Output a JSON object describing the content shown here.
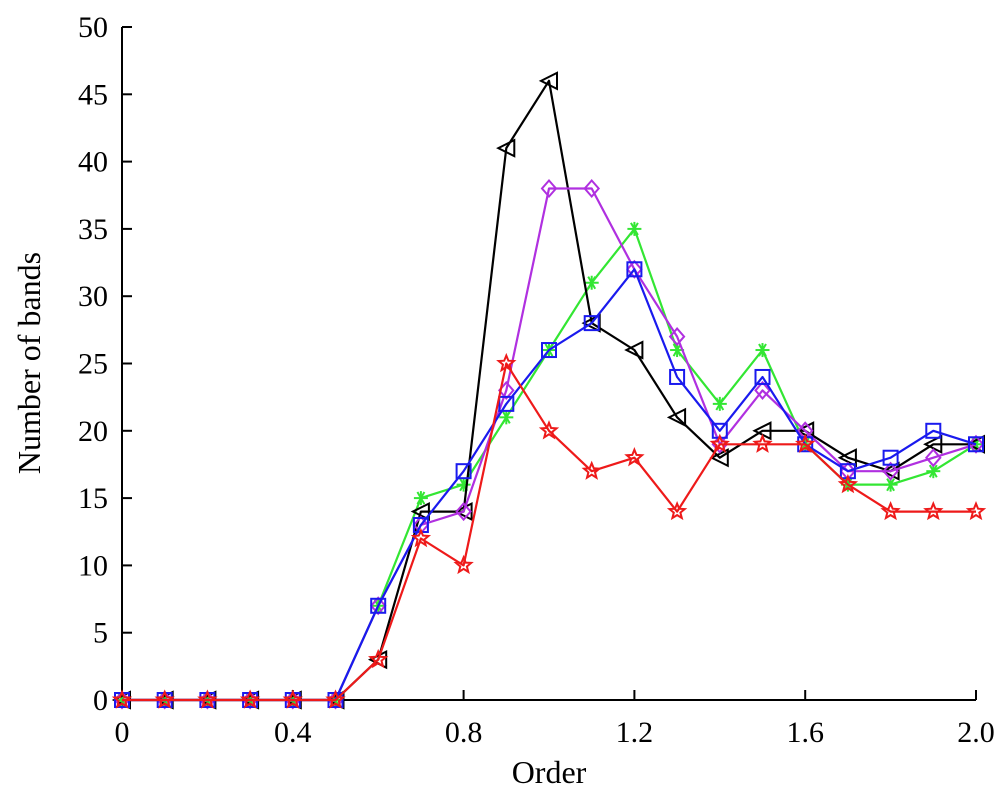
{
  "chart_data": {
    "type": "line",
    "xlabel": "Order",
    "ylabel": "Number of bands",
    "xlim": [
      0,
      2.0
    ],
    "ylim": [
      0,
      50
    ],
    "x_ticks": [
      0,
      0.4,
      0.8,
      1.2,
      1.6,
      2.0
    ],
    "x_tick_labels": [
      "0",
      "0.4",
      "0.8",
      "1.2",
      "1.6",
      "2.0"
    ],
    "y_ticks": [
      0,
      5,
      10,
      15,
      20,
      25,
      30,
      35,
      40,
      45,
      50
    ],
    "y_tick_labels": [
      "0",
      "5",
      "10",
      "15",
      "20",
      "25",
      "30",
      "35",
      "40",
      "45",
      "50"
    ],
    "grid": false,
    "x": [
      0,
      0.1,
      0.2,
      0.3,
      0.4,
      0.5,
      0.6,
      0.7,
      0.8,
      0.9,
      1.0,
      1.1,
      1.2,
      1.3,
      1.4,
      1.5,
      1.6,
      1.7,
      1.8,
      1.9,
      2.0
    ],
    "series": [
      {
        "color": "#33e633",
        "marker": "asterisk",
        "values": [
          0,
          0,
          0,
          0,
          0,
          0,
          7,
          15,
          16,
          21,
          26,
          31,
          35,
          26,
          22,
          26,
          19,
          16,
          16,
          17,
          19
        ]
      },
      {
        "color": "#000000",
        "marker": "triangle-left",
        "values": [
          0,
          0,
          0,
          0,
          0,
          0,
          3,
          14,
          14,
          41,
          46,
          28,
          26,
          21,
          18,
          20,
          20,
          18,
          17,
          19,
          19
        ]
      },
      {
        "color": "#b030e0",
        "marker": "diamond",
        "values": [
          0,
          0,
          0,
          0,
          0,
          0,
          7,
          13,
          14,
          23,
          38,
          38,
          32,
          27,
          19,
          23,
          20,
          17,
          17,
          18,
          19
        ]
      },
      {
        "color": "#1a1aee",
        "marker": "square",
        "values": [
          0,
          0,
          0,
          0,
          0,
          0,
          7,
          13,
          17,
          22,
          26,
          28,
          32,
          24,
          20,
          24,
          19,
          17,
          18,
          20,
          19
        ]
      },
      {
        "color": "#ee1a1a",
        "marker": "star",
        "values": [
          0,
          0,
          0,
          0,
          0,
          0,
          3,
          12,
          10,
          25,
          20,
          17,
          18,
          14,
          19,
          19,
          19,
          16,
          14,
          14,
          14
        ]
      }
    ]
  }
}
